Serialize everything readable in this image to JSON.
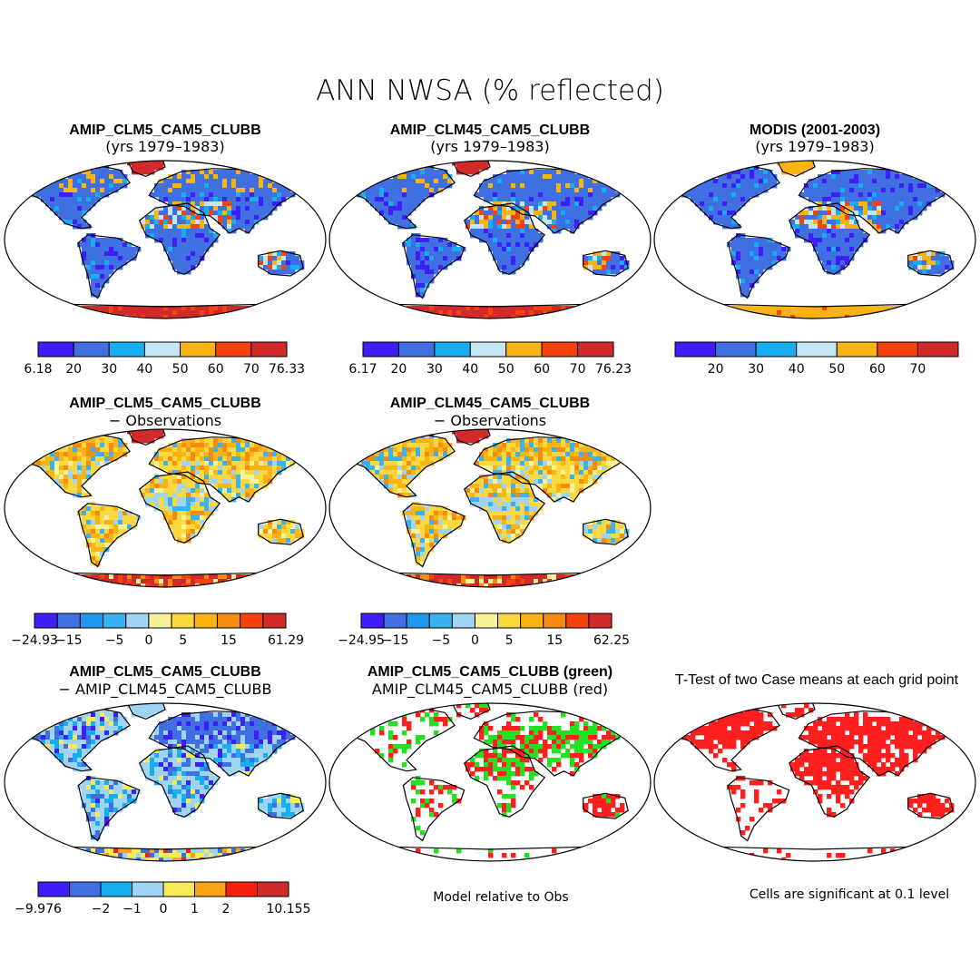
{
  "chart_data": [
    {
      "type": "heatmap",
      "figure_title": "ANN NWSA (% reflected)",
      "title": "AMIP_CLM5_CAM5_CLUBB",
      "subtitle": "(yrs 1979–1983)",
      "colorbar": {
        "colors": [
          "#3f1ff7",
          "#3f6fe0",
          "#16aef0",
          "#c3e5f5",
          "#f9b414",
          "#f7420e",
          "#d12a2a"
        ],
        "ticks": [
          "6.18",
          "20",
          "30",
          "40",
          "50",
          "60",
          "70",
          "76.33"
        ],
        "min_label": true,
        "max_label": true
      }
    },
    {
      "type": "heatmap",
      "title": "AMIP_CLM45_CAM5_CLUBB",
      "subtitle": "(yrs 1979–1983)",
      "colorbar": {
        "colors": [
          "#3f1ff7",
          "#3f6fe0",
          "#16aef0",
          "#c3e5f5",
          "#f9b414",
          "#f7420e",
          "#d12a2a"
        ],
        "ticks": [
          "6.17",
          "20",
          "30",
          "40",
          "50",
          "60",
          "70",
          "76.23"
        ],
        "min_label": true,
        "max_label": true
      }
    },
    {
      "type": "heatmap",
      "title": "MODIS (2001-2003)",
      "subtitle": "(yrs 1979–1983)",
      "colorbar": {
        "colors": [
          "#3f1ff7",
          "#3f6fe0",
          "#16aef0",
          "#c3e5f5",
          "#f9b414",
          "#f7420e",
          "#d12a2a"
        ],
        "ticks": [
          "20",
          "30",
          "40",
          "50",
          "60",
          "70"
        ],
        "min_label": false,
        "max_label": false
      }
    },
    {
      "type": "heatmap",
      "title": "AMIP_CLM5_CAM5_CLUBB",
      "subtitle": "− Observations",
      "colorbar": {
        "colors": [
          "#3f1ff7",
          "#3f6fe0",
          "#1f97ec",
          "#38b3f0",
          "#9fd4f2",
          "#f7f29a",
          "#fbd83f",
          "#f9b414",
          "#f58c0f",
          "#f7420e",
          "#d12a2a"
        ],
        "ticks": [
          "−24.93",
          "−15",
          "−5",
          "0",
          "5",
          "15",
          "61.29"
        ],
        "tick_at": [
          0,
          1.5,
          3.5,
          5,
          6.5,
          8.5,
          11
        ]
      }
    },
    {
      "type": "heatmap",
      "title": "AMIP_CLM45_CAM5_CLUBB",
      "subtitle": "− Observations",
      "colorbar": {
        "colors": [
          "#3f1ff7",
          "#3f6fe0",
          "#1f97ec",
          "#38b3f0",
          "#9fd4f2",
          "#f7f29a",
          "#fbd83f",
          "#f9b414",
          "#f58c0f",
          "#f7420e",
          "#d12a2a"
        ],
        "ticks": [
          "−24.95",
          "−15",
          "−5",
          "0",
          "5",
          "15",
          "62.25"
        ],
        "tick_at": [
          0,
          1.5,
          3.5,
          5,
          6.5,
          8.5,
          11
        ]
      }
    },
    {
      "type": "heatmap",
      "title": "AMIP_CLM5_CAM5_CLUBB",
      "subtitle": "− AMIP_CLM45_CAM5_CLUBB",
      "colorbar": {
        "colors": [
          "#3f1ff7",
          "#3f6fe0",
          "#16aef0",
          "#9fd4f2",
          "#f7e95a",
          "#f9a214",
          "#f7200e",
          "#d12a2a"
        ],
        "ticks": [
          "−9.976",
          "−2",
          "−1",
          "0",
          "1",
          "2",
          "10.155"
        ],
        "tick_at": [
          0,
          2,
          3,
          4,
          5,
          6,
          8
        ]
      }
    },
    {
      "type": "heatmap",
      "title": "AMIP_CLM5_CAM5_CLUBB (green)",
      "subtitle": "AMIP_CLM45_CAM5_CLUBB (red)",
      "note": "Model relative to Obs",
      "categories": [
        "green",
        "red"
      ]
    },
    {
      "type": "heatmap",
      "title": "T-Test of two Case means at each grid point",
      "note": "Cells are significant at 0.1 level",
      "categories": [
        "significant"
      ]
    }
  ]
}
